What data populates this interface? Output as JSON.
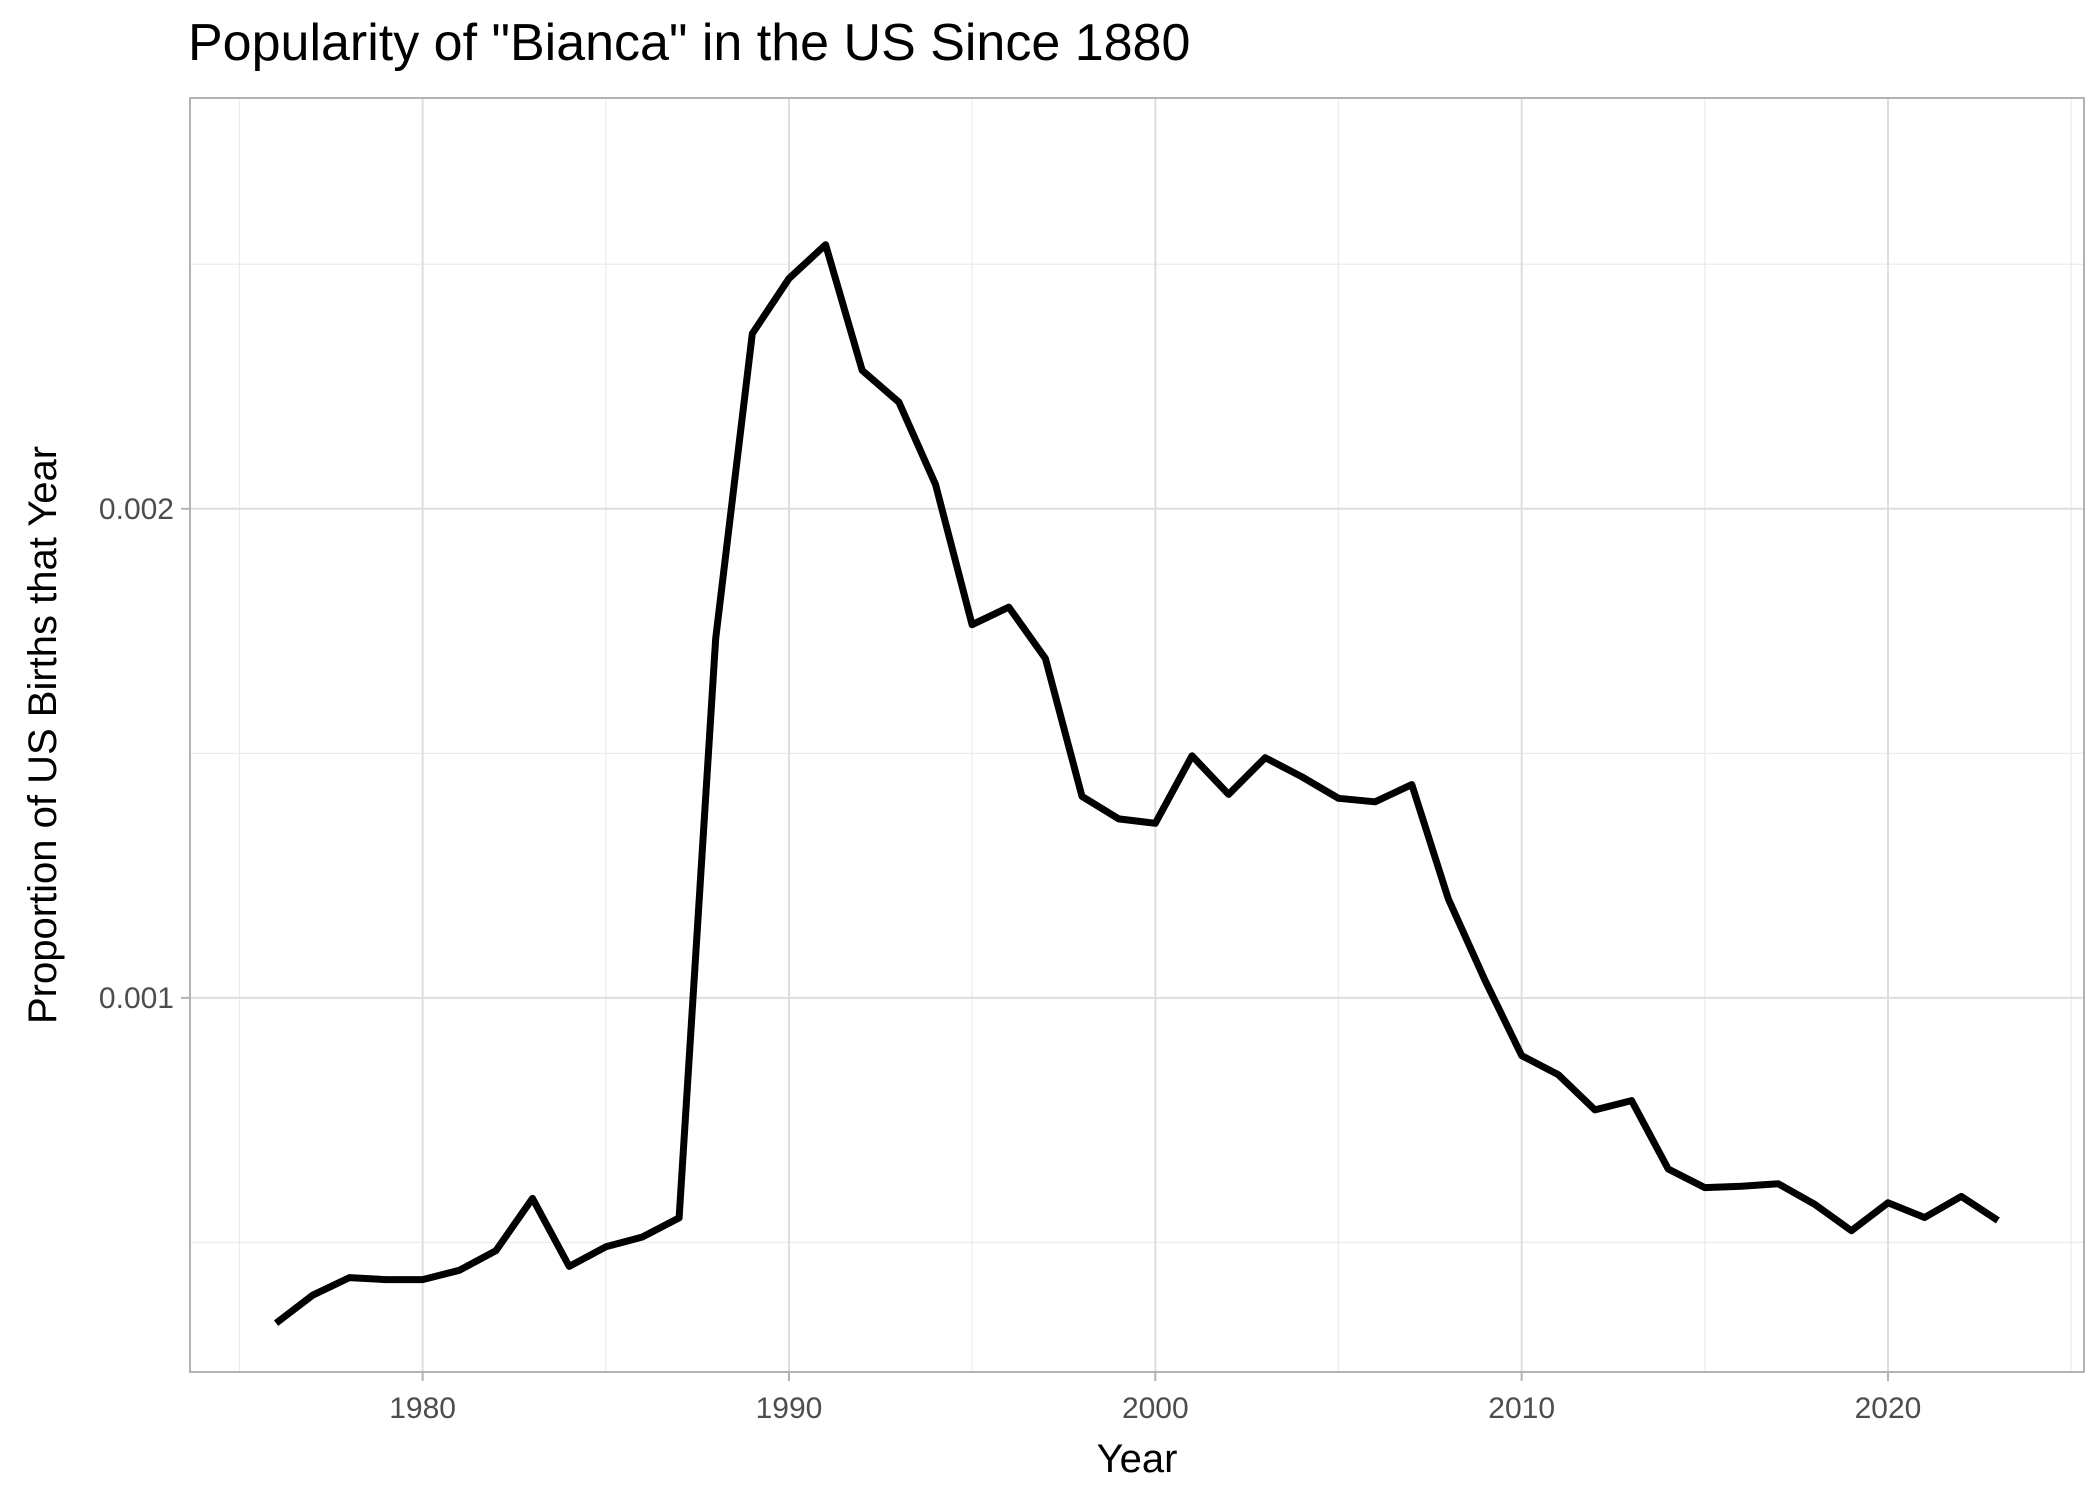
{
  "chart_data": {
    "type": "line",
    "title": "Popularity of \"Bianca\" in the US Since 1880",
    "xlabel": "Year",
    "ylabel": "Proportion of US Births that Year",
    "xlim": [
      1973.65,
      2025.35
    ],
    "ylim": [
      0.000235,
      0.00284
    ],
    "x_ticks": [
      1980,
      1990,
      2000,
      2010,
      2020
    ],
    "x_minor_ticks": [
      1975,
      1985,
      1995,
      2005,
      2015,
      2025
    ],
    "y_ticks": [
      0.001,
      0.002
    ],
    "y_tick_labels": [
      "0.001",
      "0.002"
    ],
    "y_minor_ticks": [
      0.0005,
      0.0015,
      0.0025
    ],
    "grid": true,
    "line_color": "#000000",
    "series": [
      {
        "x": [
          1976,
          1977,
          1978,
          1979,
          1980,
          1981,
          1982,
          1983,
          1984,
          1985,
          1986,
          1987,
          1988,
          1989,
          1990,
          1991,
          1992,
          1993,
          1994,
          1995,
          1996,
          1997,
          1998,
          1999,
          2000,
          2001,
          2002,
          2003,
          2004,
          2005,
          2006,
          2007,
          2008,
          2009,
          2010,
          2011,
          2012,
          2013,
          2014,
          2015,
          2016,
          2017,
          2018,
          2019,
          2020,
          2021,
          2022,
          2023
        ],
        "y": [
          0.000335,
          0.000392,
          0.000428,
          0.000424,
          0.000424,
          0.000443,
          0.000483,
          0.00059,
          0.000451,
          0.000491,
          0.000511,
          0.00055,
          0.001735,
          0.002358,
          0.002471,
          0.00254,
          0.002283,
          0.002218,
          0.00205,
          0.001763,
          0.001799,
          0.001694,
          0.001412,
          0.001366,
          0.001357,
          0.001495,
          0.001416,
          0.001491,
          0.001452,
          0.001408,
          0.001401,
          0.001436,
          0.001202,
          0.001036,
          0.000882,
          0.000843,
          0.000771,
          0.00079,
          0.00065,
          0.000612,
          0.000615,
          0.00062,
          0.000578,
          0.000524,
          0.000581,
          0.000551,
          0.000594,
          0.000545
        ]
      }
    ]
  }
}
